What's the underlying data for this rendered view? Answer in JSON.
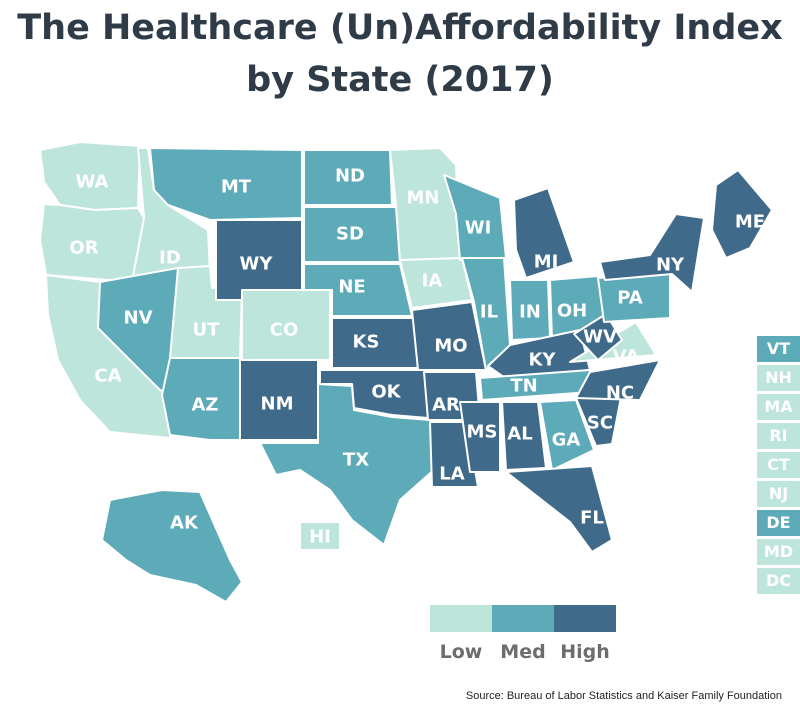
{
  "title": {
    "line1": "The Healthcare (Un)Affordability Index",
    "line2": "by State (2017)"
  },
  "colors": {
    "Low": "#bde5dc",
    "Med": "#5daab9",
    "High": "#3f6a8a"
  },
  "legend": [
    {
      "label": "Low",
      "level": "Low"
    },
    {
      "label": "Med",
      "level": "Med"
    },
    {
      "label": "High",
      "level": "High"
    }
  ],
  "states": [
    {
      "abbr": "WA",
      "level": "Low"
    },
    {
      "abbr": "OR",
      "level": "Low"
    },
    {
      "abbr": "CA",
      "level": "Low"
    },
    {
      "abbr": "ID",
      "level": "Low"
    },
    {
      "abbr": "NV",
      "level": "Med"
    },
    {
      "abbr": "UT",
      "level": "Low"
    },
    {
      "abbr": "AZ",
      "level": "Med"
    },
    {
      "abbr": "MT",
      "level": "Med"
    },
    {
      "abbr": "WY",
      "level": "High"
    },
    {
      "abbr": "CO",
      "level": "Low"
    },
    {
      "abbr": "NM",
      "level": "High"
    },
    {
      "abbr": "ND",
      "level": "Med"
    },
    {
      "abbr": "SD",
      "level": "Med"
    },
    {
      "abbr": "NE",
      "level": "Med"
    },
    {
      "abbr": "KS",
      "level": "High"
    },
    {
      "abbr": "OK",
      "level": "High"
    },
    {
      "abbr": "TX",
      "level": "Med"
    },
    {
      "abbr": "MN",
      "level": "Low"
    },
    {
      "abbr": "IA",
      "level": "Low"
    },
    {
      "abbr": "MO",
      "level": "High"
    },
    {
      "abbr": "AR",
      "level": "High"
    },
    {
      "abbr": "LA",
      "level": "High"
    },
    {
      "abbr": "WI",
      "level": "Med"
    },
    {
      "abbr": "IL",
      "level": "Med"
    },
    {
      "abbr": "MI",
      "level": "High"
    },
    {
      "abbr": "IN",
      "level": "Med"
    },
    {
      "abbr": "OH",
      "level": "Med"
    },
    {
      "abbr": "KY",
      "level": "High"
    },
    {
      "abbr": "TN",
      "level": "Med"
    },
    {
      "abbr": "MS",
      "level": "High"
    },
    {
      "abbr": "AL",
      "level": "High"
    },
    {
      "abbr": "GA",
      "level": "Med"
    },
    {
      "abbr": "FL",
      "level": "High"
    },
    {
      "abbr": "SC",
      "level": "High"
    },
    {
      "abbr": "NC",
      "level": "High"
    },
    {
      "abbr": "VA",
      "level": "Low"
    },
    {
      "abbr": "WV",
      "level": "High"
    },
    {
      "abbr": "PA",
      "level": "Med"
    },
    {
      "abbr": "NY",
      "level": "High"
    },
    {
      "abbr": "ME",
      "level": "High"
    },
    {
      "abbr": "AK",
      "level": "Med"
    },
    {
      "abbr": "HI",
      "level": "Low"
    }
  ],
  "small_states": [
    {
      "abbr": "VT",
      "level": "Med"
    },
    {
      "abbr": "NH",
      "level": "Low"
    },
    {
      "abbr": "MA",
      "level": "Low"
    },
    {
      "abbr": "RI",
      "level": "Low"
    },
    {
      "abbr": "CT",
      "level": "Low"
    },
    {
      "abbr": "NJ",
      "level": "Low"
    },
    {
      "abbr": "DE",
      "level": "Med"
    },
    {
      "abbr": "MD",
      "level": "Low"
    },
    {
      "abbr": "DC",
      "level": "Low"
    }
  ],
  "source": "Source: Bureau of Labor Statistics and Kaiser Family Foundation"
}
